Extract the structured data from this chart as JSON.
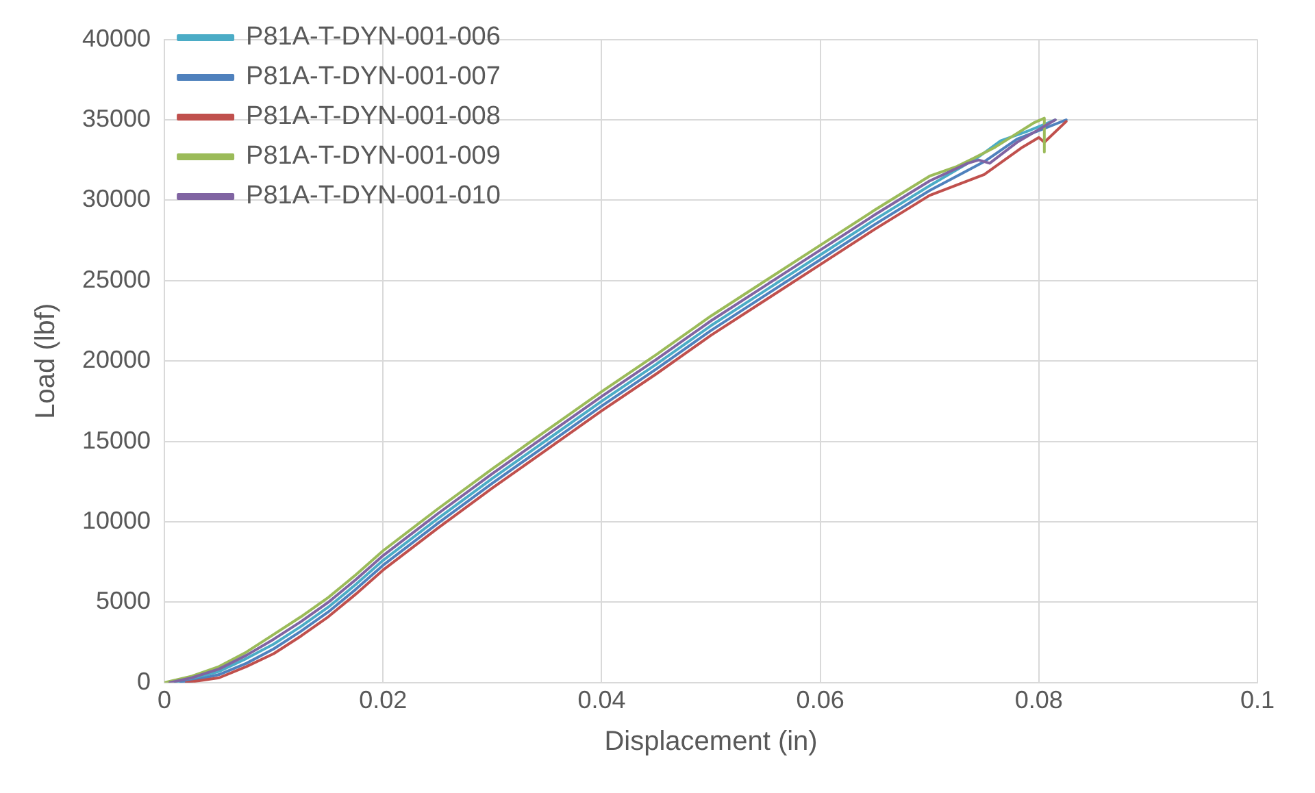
{
  "chart_data": {
    "type": "line",
    "xlabel": "Displacement (in)",
    "ylabel": "Load (lbf)",
    "xlim": [
      0,
      0.1
    ],
    "xticks": [
      {
        "value": 0,
        "label": "0"
      },
      {
        "value": 0.02,
        "label": "0.02"
      },
      {
        "value": 0.04,
        "label": "0.04"
      },
      {
        "value": 0.06,
        "label": "0.06"
      },
      {
        "value": 0.08,
        "label": "0.08"
      },
      {
        "value": 0.1,
        "label": "0.1"
      }
    ],
    "ylim": [
      0,
      40000
    ],
    "yticks": [
      0,
      5000,
      10000,
      15000,
      20000,
      25000,
      30000,
      35000,
      40000
    ],
    "grid": true,
    "legend": "top left",
    "marker": "none",
    "line_style": "solid",
    "series": [
      {
        "name": "P81A-T-DYN-001-006",
        "color": "#4bacc6",
        "x": [
          0.001,
          0.0025,
          0.005,
          0.0075,
          0.01,
          0.0125,
          0.015,
          0.0175,
          0.02,
          0.025,
          0.03,
          0.035,
          0.04,
          0.045,
          0.05,
          0.055,
          0.06,
          0.065,
          0.07,
          0.0745,
          0.0765,
          0.079,
          0.0815
        ],
        "values": [
          0,
          200,
          700,
          1500,
          2400,
          3500,
          4700,
          6100,
          7600,
          10200,
          12700,
          15100,
          17500,
          19800,
          22200,
          24400,
          26600,
          28800,
          30900,
          32700,
          33700,
          34300,
          35000
        ]
      },
      {
        "name": "P81A-T-DYN-001-007",
        "color": "#4f81bd",
        "x": [
          0.0015,
          0.0025,
          0.005,
          0.0075,
          0.01,
          0.0125,
          0.015,
          0.0175,
          0.02,
          0.025,
          0.03,
          0.035,
          0.04,
          0.045,
          0.05,
          0.055,
          0.06,
          0.065,
          0.07,
          0.075,
          0.078,
          0.0825
        ],
        "values": [
          0,
          100,
          500,
          1200,
          2100,
          3200,
          4400,
          5800,
          7300,
          9900,
          12400,
          14800,
          17200,
          19500,
          21900,
          24100,
          26300,
          28500,
          30600,
          32400,
          33800,
          35000
        ]
      },
      {
        "name": "P81A-T-DYN-001-008",
        "color": "#c0504d",
        "x": [
          0.002,
          0.005,
          0.0075,
          0.01,
          0.0125,
          0.015,
          0.0175,
          0.02,
          0.025,
          0.03,
          0.035,
          0.04,
          0.045,
          0.05,
          0.055,
          0.06,
          0.065,
          0.07,
          0.075,
          0.0785,
          0.08,
          0.0805,
          0.0825
        ],
        "values": [
          0,
          300,
          1000,
          1800,
          2900,
          4100,
          5500,
          7000,
          9600,
          12100,
          14500,
          16900,
          19200,
          21600,
          23800,
          26000,
          28200,
          30300,
          31600,
          33300,
          33900,
          33600,
          34900
        ]
      },
      {
        "name": "P81A-T-DYN-001-009",
        "color": "#9bbb59",
        "x": [
          0,
          0.0025,
          0.005,
          0.0075,
          0.01,
          0.0125,
          0.015,
          0.0175,
          0.02,
          0.025,
          0.03,
          0.035,
          0.04,
          0.045,
          0.05,
          0.055,
          0.06,
          0.065,
          0.07,
          0.0725,
          0.074,
          0.076,
          0.0795,
          0.0805,
          0.0805
        ],
        "values": [
          0,
          400,
          1000,
          1900,
          3000,
          4100,
          5300,
          6700,
          8200,
          10800,
          13300,
          15700,
          18100,
          20400,
          22800,
          25000,
          27200,
          29400,
          31500,
          32100,
          32600,
          33300,
          34800,
          35100,
          33000
        ]
      },
      {
        "name": "P81A-T-DYN-001-010",
        "color": "#8064a2",
        "x": [
          0.0005,
          0.0025,
          0.005,
          0.0075,
          0.01,
          0.0125,
          0.015,
          0.0175,
          0.02,
          0.025,
          0.03,
          0.035,
          0.04,
          0.045,
          0.05,
          0.055,
          0.06,
          0.065,
          0.07,
          0.0735,
          0.0745,
          0.0755,
          0.078,
          0.0815
        ],
        "values": [
          0,
          300,
          850,
          1700,
          2700,
          3800,
          5000,
          6400,
          7900,
          10500,
          13000,
          15400,
          17800,
          20100,
          22500,
          24700,
          26900,
          29100,
          31200,
          32300,
          32500,
          32300,
          33600,
          35000
        ]
      }
    ]
  }
}
